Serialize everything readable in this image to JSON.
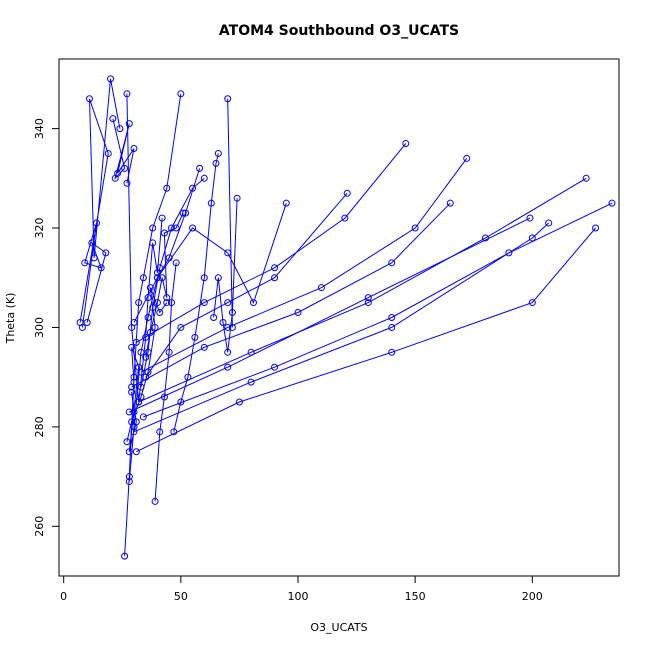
{
  "chart_data": {
    "type": "line",
    "title": "ATOM4 Southbound O3_UCATS",
    "xlabel": "O3_UCATS",
    "ylabel": "Theta (K)",
    "xlim": [
      -2,
      237
    ],
    "ylim": [
      250,
      354
    ],
    "x_ticks": [
      0,
      50,
      100,
      150,
      200
    ],
    "y_ticks": [
      260,
      280,
      300,
      320,
      340
    ],
    "grid": false,
    "legend": "none",
    "line_color": "#0000ff",
    "marker": "open-circle",
    "series": [
      {
        "x": [
          7,
          19,
          11,
          13,
          20,
          24
        ],
        "y": [
          301,
          335,
          346,
          314,
          350,
          340
        ]
      },
      {
        "x": [
          8,
          14,
          9,
          16,
          12,
          18,
          10
        ],
        "y": [
          300,
          321,
          313,
          312,
          317,
          315,
          301
        ]
      },
      {
        "x": [
          21,
          26,
          22,
          28,
          23,
          30,
          27
        ],
        "y": [
          342,
          332,
          330,
          341,
          331,
          336,
          329
        ]
      },
      {
        "x": [
          27,
          29,
          32,
          35,
          36,
          38,
          40,
          42
        ],
        "y": [
          347,
          300,
          285,
          298,
          306,
          317,
          311,
          322
        ]
      },
      {
        "x": [
          26,
          28,
          30,
          32,
          34,
          38,
          44,
          50
        ],
        "y": [
          254,
          270,
          290,
          305,
          310,
          320,
          328,
          347
        ]
      },
      {
        "x": [
          28,
          30,
          33,
          36,
          40,
          45,
          52,
          58
        ],
        "y": [
          269,
          280,
          295,
          302,
          310,
          314,
          323,
          332
        ]
      },
      {
        "x": [
          39,
          41,
          43,
          45,
          46,
          48
        ],
        "y": [
          265,
          279,
          286,
          295,
          305,
          313
        ]
      },
      {
        "x": [
          47,
          50,
          53,
          56,
          60,
          63,
          65,
          66
        ],
        "y": [
          279,
          285,
          290,
          298,
          310,
          325,
          333,
          335
        ]
      },
      {
        "x": [
          64,
          66,
          68,
          70,
          72,
          74
        ],
        "y": [
          302,
          310,
          301,
          295,
          303,
          326
        ]
      },
      {
        "x": [
          70,
          72
        ],
        "y": [
          346,
          300
        ]
      },
      {
        "x": [
          30,
          40,
          55,
          70,
          81,
          95
        ],
        "y": [
          301,
          310,
          320,
          315,
          305,
          325
        ]
      },
      {
        "x": [
          35,
          50,
          70,
          90,
          121
        ],
        "y": [
          290,
          300,
          305,
          310,
          327
        ]
      },
      {
        "x": [
          31,
          60,
          90,
          120,
          146
        ],
        "y": [
          297,
          305,
          312,
          322,
          337
        ]
      },
      {
        "x": [
          33,
          70,
          110,
          150,
          172
        ],
        "y": [
          291,
          300,
          308,
          320,
          334
        ]
      },
      {
        "x": [
          29,
          60,
          100,
          140,
          165
        ],
        "y": [
          288,
          296,
          303,
          313,
          325
        ]
      },
      {
        "x": [
          32,
          80,
          130,
          180,
          223
        ],
        "y": [
          285,
          295,
          305,
          318,
          330
        ]
      },
      {
        "x": [
          34,
          90,
          140,
          190,
          234
        ],
        "y": [
          282,
          292,
          302,
          315,
          325
        ]
      },
      {
        "x": [
          30,
          80,
          140,
          200,
          207
        ],
        "y": [
          279,
          289,
          300,
          318,
          321
        ]
      },
      {
        "x": [
          28,
          70,
          130,
          199
        ],
        "y": [
          283,
          292,
          306,
          322
        ]
      },
      {
        "x": [
          31,
          75,
          140,
          200,
          227
        ],
        "y": [
          275,
          285,
          295,
          305,
          320
        ]
      },
      {
        "x": [
          27,
          30,
          29,
          31,
          28,
          32,
          29,
          30
        ],
        "y": [
          277,
          283,
          287,
          281,
          275,
          292,
          296,
          289
        ]
      },
      {
        "x": [
          29,
          33,
          36,
          39,
          37,
          41,
          44
        ],
        "y": [
          281,
          286,
          291,
          300,
          308,
          303,
          305
        ]
      },
      {
        "x": [
          35,
          37,
          40,
          42,
          44,
          43,
          48,
          51
        ],
        "y": [
          294,
          299,
          305,
          310,
          306,
          319,
          320,
          323
        ]
      },
      {
        "x": [
          33,
          36,
          38,
          41,
          46,
          55,
          60
        ],
        "y": [
          288,
          295,
          304,
          312,
          320,
          328,
          330
        ]
      }
    ]
  }
}
